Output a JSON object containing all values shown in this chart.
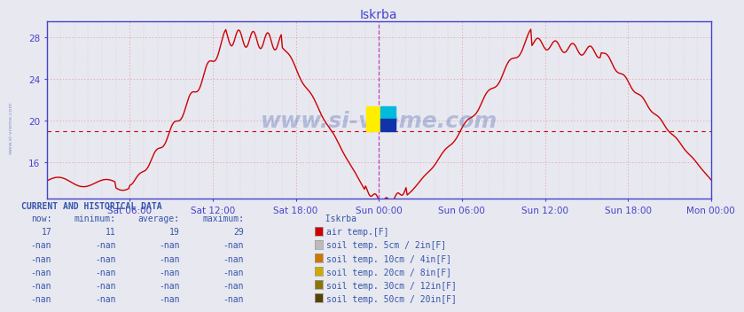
{
  "title": "Iskrba",
  "title_color": "#4444cc",
  "bg_color": "#e8e8f0",
  "plot_bg_color": "#e8e8f0",
  "line_color": "#cc0000",
  "line_width": 1.0,
  "ylim": [
    12.5,
    29.5
  ],
  "yticks": [
    16,
    20,
    24,
    28
  ],
  "avg_line_value": 19.0,
  "avg_line_color": "#cc0000",
  "grid_h_color": "#dd9999",
  "grid_v_color": "#dd9999",
  "axis_color": "#4444cc",
  "tick_label_color": "#4444cc",
  "watermark_text": "www.si-vreme.com",
  "watermark_color": "#3355aa",
  "watermark_alpha": 0.3,
  "sidebar_text": "www.si-vreme.com",
  "xtick_labels": [
    "Sat 06:00",
    "Sat 12:00",
    "Sat 18:00",
    "Sun 00:00",
    "Sun 06:00",
    "Sun 12:00",
    "Sun 18:00",
    "Mon 00:00"
  ],
  "sun00_vline_color": "#bb44bb",
  "mon00_vline_color": "#bb44bb",
  "current_data_header": "CURRENT AND HISTORICAL DATA",
  "col_header_color": "#3355aa",
  "data_color": "#3355aa",
  "row1": [
    "17",
    "11",
    "19",
    "29"
  ],
  "legend_labels": [
    "air temp.[F]",
    "soil temp. 5cm / 2in[F]",
    "soil temp. 10cm / 4in[F]",
    "soil temp. 20cm / 8in[F]",
    "soil temp. 30cm / 12in[F]",
    "soil temp. 50cm / 20in[F]"
  ],
  "legend_colors": [
    "#cc0000",
    "#bbbbbb",
    "#cc7700",
    "#ccaa00",
    "#887700",
    "#554400"
  ],
  "n_points": 576,
  "total_hours": 48
}
